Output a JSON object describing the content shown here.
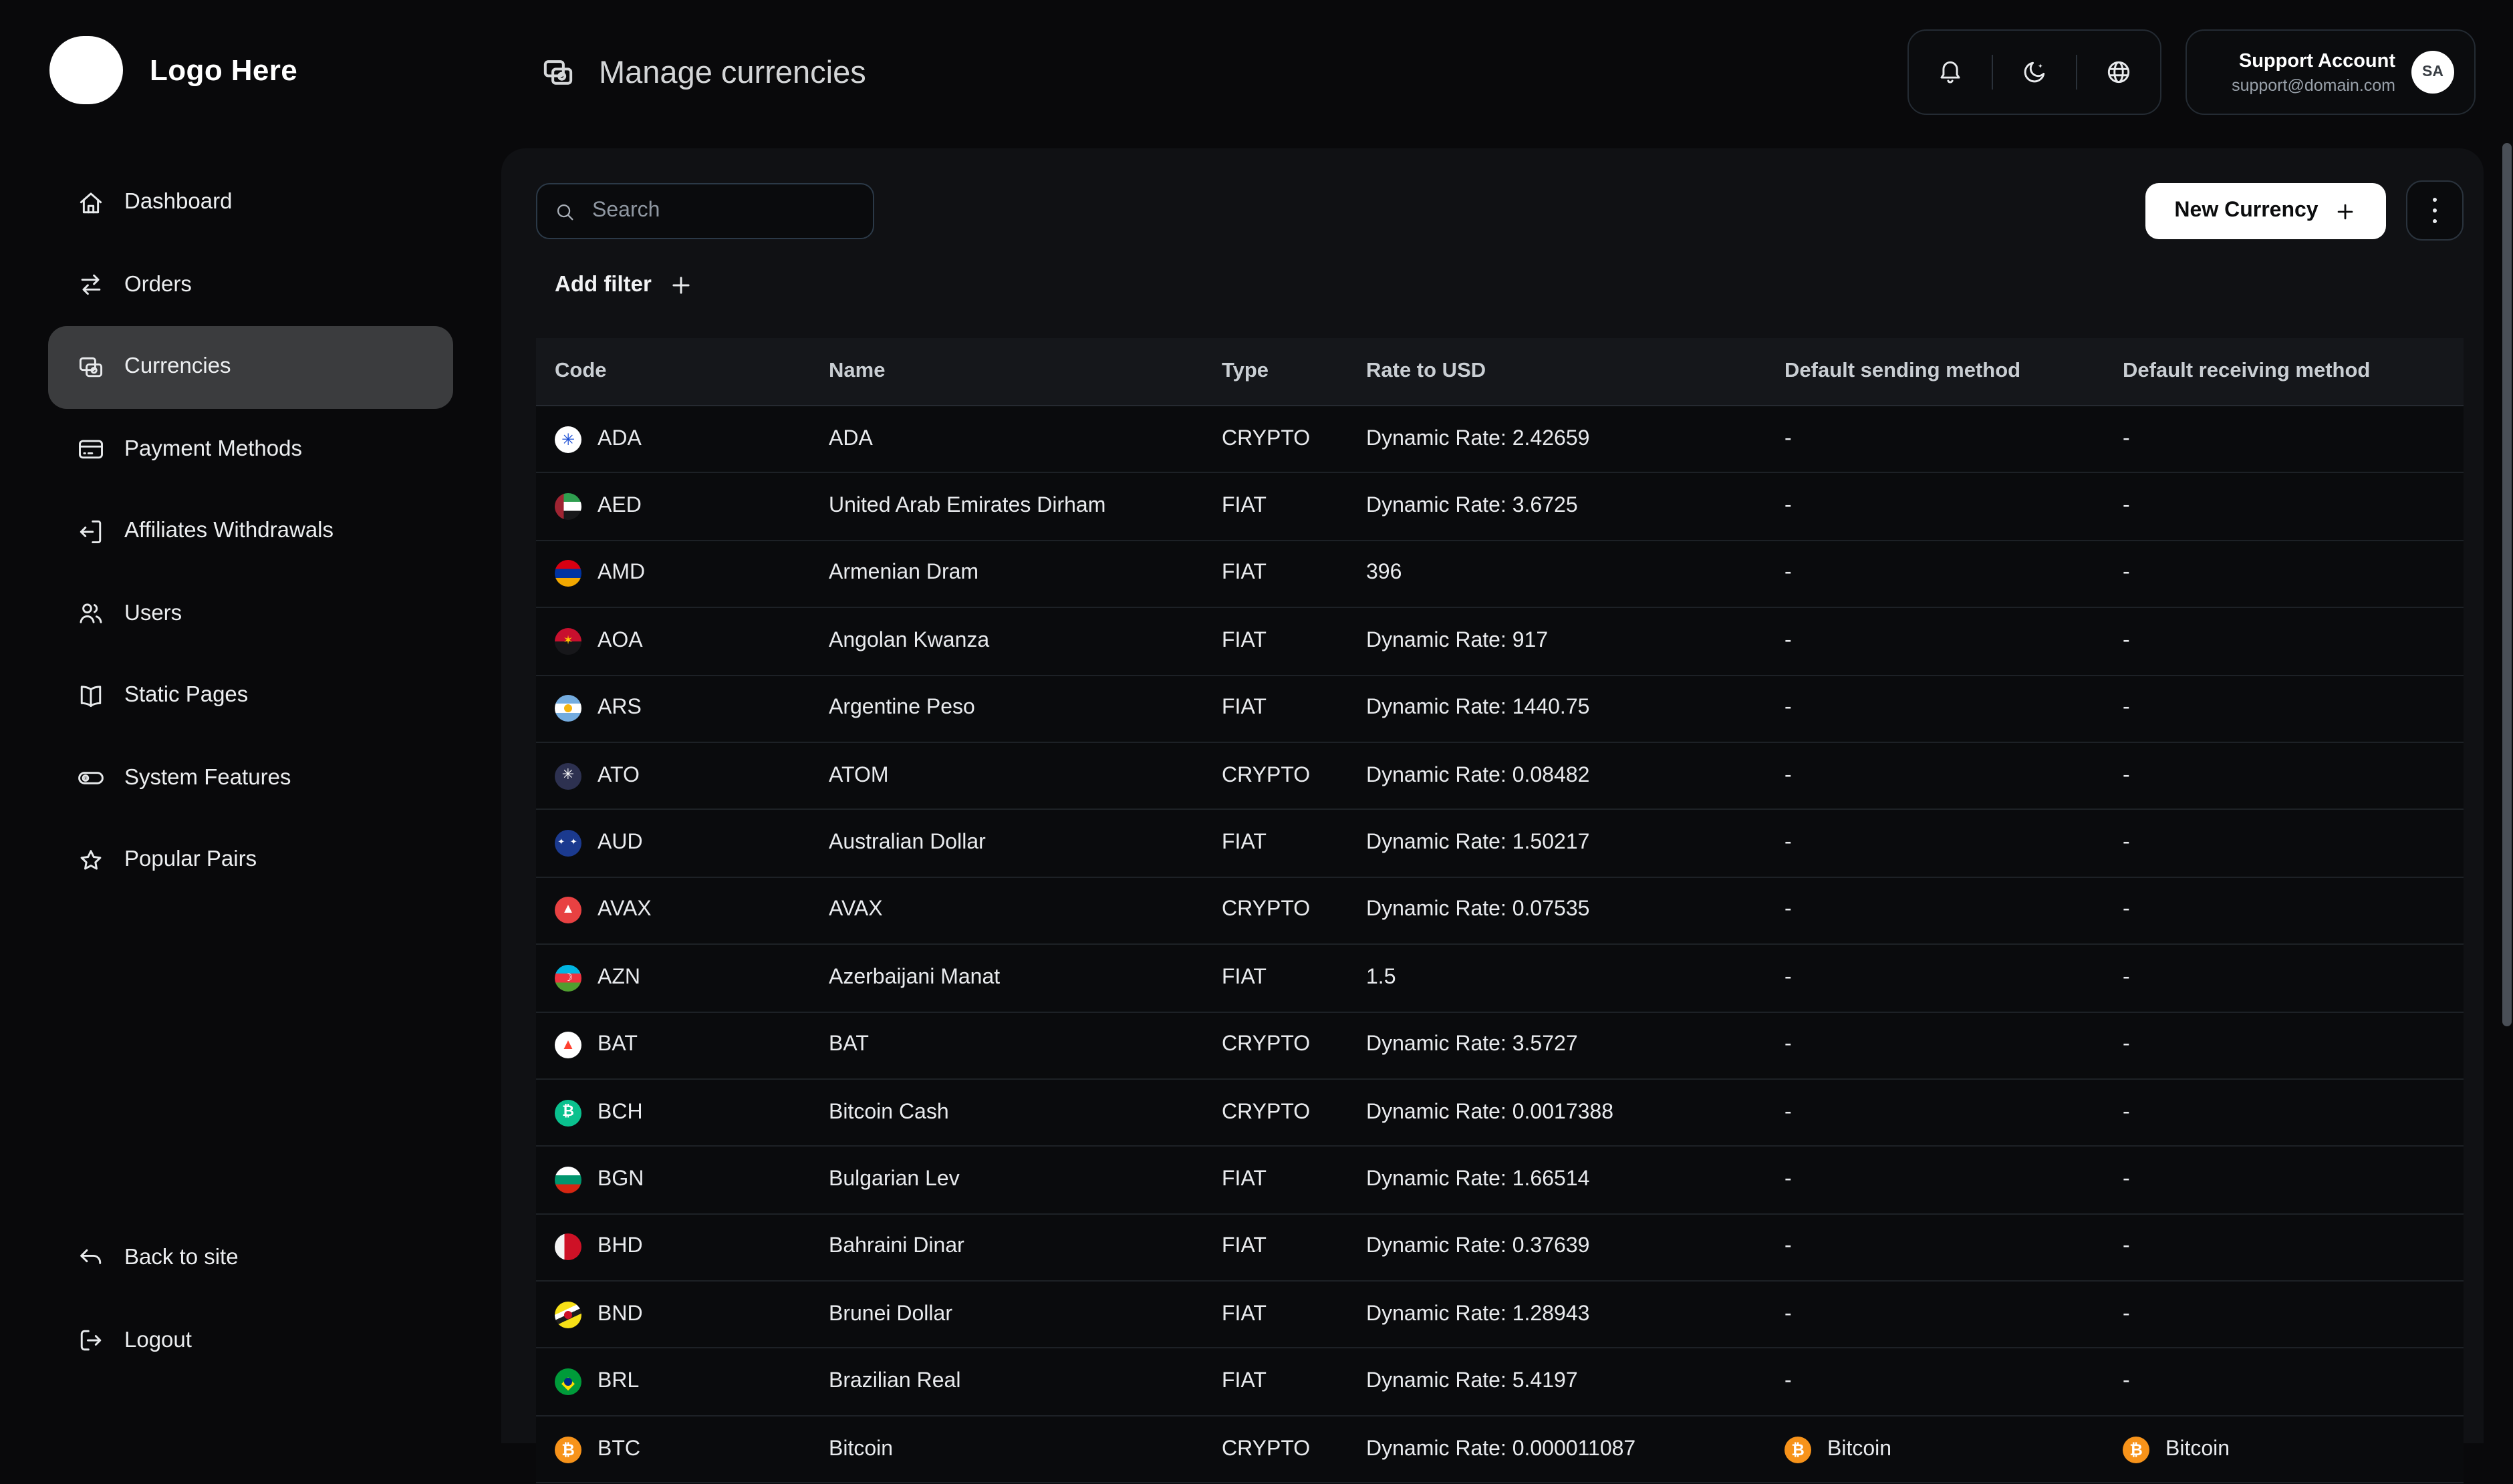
{
  "brand": {
    "logo_text": "Logo Here"
  },
  "header": {
    "title": "Manage currencies",
    "account": {
      "name": "Support Account",
      "email": "support@domain.com",
      "avatar_initials": "SA"
    }
  },
  "sidebar": {
    "items": [
      {
        "label": "Dashboard",
        "icon": "home-icon",
        "active": false
      },
      {
        "label": "Orders",
        "icon": "swap-icon",
        "active": false
      },
      {
        "label": "Currencies",
        "icon": "currencies-icon",
        "active": true
      },
      {
        "label": "Payment Methods",
        "icon": "credit-card-icon",
        "active": false
      },
      {
        "label": "Affiliates Withdrawals",
        "icon": "affiliate-withdraw-icon",
        "active": false
      },
      {
        "label": "Users",
        "icon": "users-icon",
        "active": false
      },
      {
        "label": "Static Pages",
        "icon": "book-icon",
        "active": false
      },
      {
        "label": "System Features",
        "icon": "toggle-icon",
        "active": false
      },
      {
        "label": "Popular Pairs",
        "icon": "star-icon",
        "active": false
      }
    ],
    "footer_items": [
      {
        "label": "Back to site",
        "icon": "return-icon",
        "active": false
      },
      {
        "label": "Logout",
        "icon": "logout-icon",
        "active": false
      }
    ]
  },
  "toolbar": {
    "search_placeholder": "Search",
    "add_filter_label": "Add filter",
    "new_currency_label": "New Currency"
  },
  "table": {
    "columns": [
      "Code",
      "Name",
      "Type",
      "Rate to USD",
      "Default sending method",
      "Default receiving method"
    ],
    "rows": [
      {
        "code": "ADA",
        "name": "ADA",
        "type": "CRYPTO",
        "rate": "Dynamic Rate: 2.42659",
        "sending": "-",
        "receiving": "-",
        "icon": "cardano-icon"
      },
      {
        "code": "AED",
        "name": "United Arab Emirates Dirham",
        "type": "FIAT",
        "rate": "Dynamic Rate: 3.6725",
        "sending": "-",
        "receiving": "-",
        "icon": "uae-flag-icon"
      },
      {
        "code": "AMD",
        "name": "Armenian Dram",
        "type": "FIAT",
        "rate": "396",
        "sending": "-",
        "receiving": "-",
        "icon": "armenia-flag-icon"
      },
      {
        "code": "AOA",
        "name": "Angolan Kwanza",
        "type": "FIAT",
        "rate": "Dynamic Rate: 917",
        "sending": "-",
        "receiving": "-",
        "icon": "angola-flag-icon"
      },
      {
        "code": "ARS",
        "name": "Argentine Peso",
        "type": "FIAT",
        "rate": "Dynamic Rate: 1440.75",
        "sending": "-",
        "receiving": "-",
        "icon": "argentina-flag-icon"
      },
      {
        "code": "ATO",
        "name": "ATOM",
        "type": "CRYPTO",
        "rate": "Dynamic Rate: 0.08482",
        "sending": "-",
        "receiving": "-",
        "icon": "atom-icon"
      },
      {
        "code": "AUD",
        "name": "Australian Dollar",
        "type": "FIAT",
        "rate": "Dynamic Rate: 1.50217",
        "sending": "-",
        "receiving": "-",
        "icon": "australia-flag-icon"
      },
      {
        "code": "AVAX",
        "name": "AVAX",
        "type": "CRYPTO",
        "rate": "Dynamic Rate: 0.07535",
        "sending": "-",
        "receiving": "-",
        "icon": "avalanche-icon"
      },
      {
        "code": "AZN",
        "name": "Azerbaijani Manat",
        "type": "FIAT",
        "rate": "1.5",
        "sending": "-",
        "receiving": "-",
        "icon": "azerbaijan-flag-icon"
      },
      {
        "code": "BAT",
        "name": "BAT",
        "type": "CRYPTO",
        "rate": "Dynamic Rate: 3.5727",
        "sending": "-",
        "receiving": "-",
        "icon": "bat-icon"
      },
      {
        "code": "BCH",
        "name": "Bitcoin Cash",
        "type": "CRYPTO",
        "rate": "Dynamic Rate: 0.0017388",
        "sending": "-",
        "receiving": "-",
        "icon": "bitcoincash-icon"
      },
      {
        "code": "BGN",
        "name": "Bulgarian Lev",
        "type": "FIAT",
        "rate": "Dynamic Rate: 1.66514",
        "sending": "-",
        "receiving": "-",
        "icon": "bulgaria-flag-icon"
      },
      {
        "code": "BHD",
        "name": "Bahraini Dinar",
        "type": "FIAT",
        "rate": "Dynamic Rate: 0.37639",
        "sending": "-",
        "receiving": "-",
        "icon": "bahrain-flag-icon"
      },
      {
        "code": "BND",
        "name": "Brunei Dollar",
        "type": "FIAT",
        "rate": "Dynamic Rate: 1.28943",
        "sending": "-",
        "receiving": "-",
        "icon": "brunei-flag-icon"
      },
      {
        "code": "BRL",
        "name": "Brazilian Real",
        "type": "FIAT",
        "rate": "Dynamic Rate: 5.4197",
        "sending": "-",
        "receiving": "-",
        "icon": "brazil-flag-icon"
      },
      {
        "code": "BTC",
        "name": "Bitcoin",
        "type": "CRYPTO",
        "rate": "Dynamic Rate: 0.000011087",
        "sending": "Bitcoin",
        "receiving": "Bitcoin",
        "icon": "bitcoin-icon",
        "sending_icon": "bitcoin-icon",
        "receiving_icon": "bitcoin-icon"
      }
    ]
  },
  "colors": {
    "page_background": "#09090b",
    "panel_background": "#101114",
    "active_nav_background": "#3b3c3e",
    "primary_button_background": "#ffffff",
    "primary_button_text": "#0c0d0e",
    "bitcoin_orange": "#f7931a",
    "scrollbar_thumb": "#4a4f57"
  }
}
